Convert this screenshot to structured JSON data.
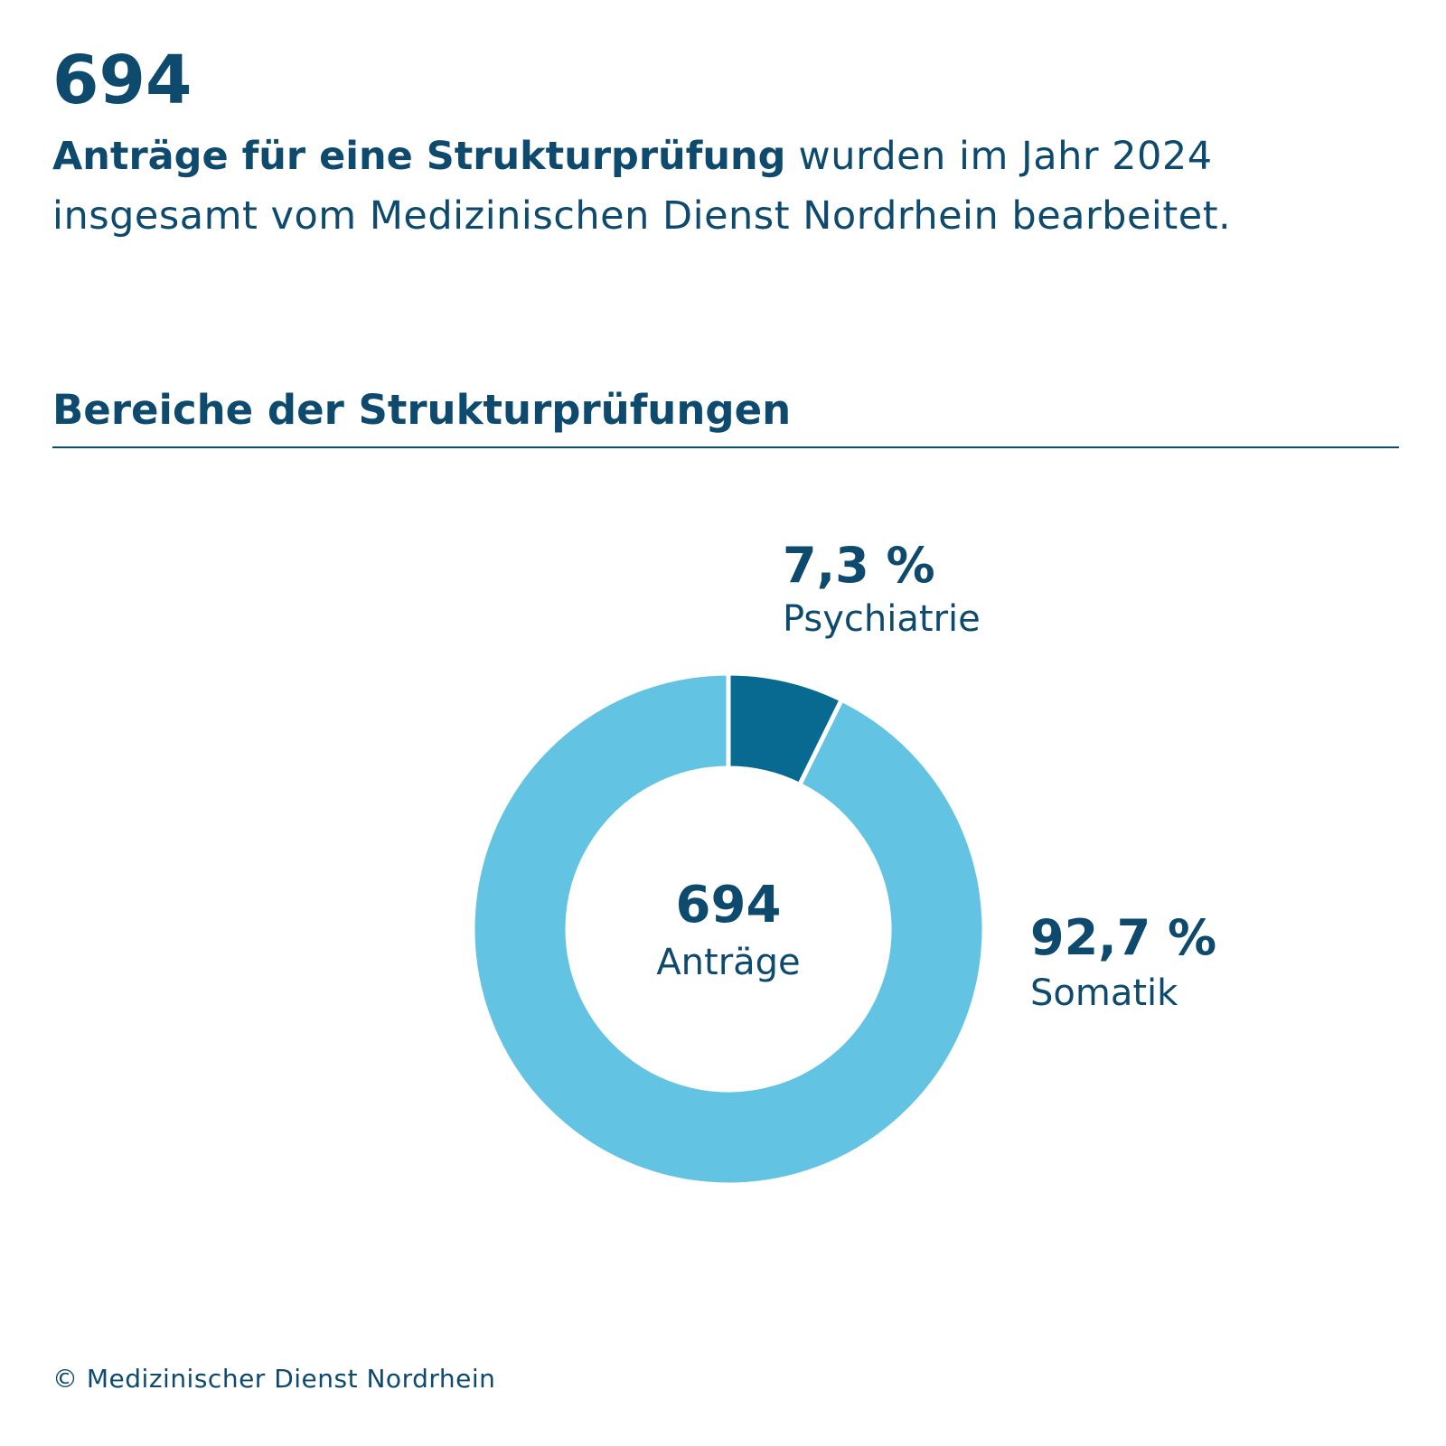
{
  "header": {
    "number": "694",
    "intro_bold": "Anträge für eine Strukturprüfung",
    "intro_rest": " wurden im Jahr 2024 insgesamt vom Medizinischen Dienst Nordrhein bearbeitet."
  },
  "section_title": "Bereiche der Strukturprüfungen",
  "footer": "© Medizinischer Dienst Nordrhein",
  "colors": {
    "text": "#0e4a6e",
    "psychiatrie": "#086a90",
    "somatik": "#62c3e2"
  },
  "chart_data": {
    "type": "pie",
    "style": "donut",
    "center_value": "694",
    "center_label": "Anträge",
    "slices": [
      {
        "label": "Psychiatrie",
        "value": 7.3,
        "value_label": "7,3 %",
        "color": "#086a90"
      },
      {
        "label": "Somatik",
        "value": 92.7,
        "value_label": "92,7 %",
        "color": "#62c3e2"
      }
    ]
  }
}
